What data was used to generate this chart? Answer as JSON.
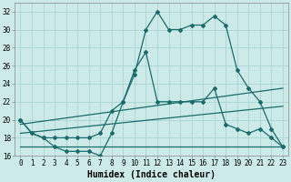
{
  "xlabel": "Humidex (Indice chaleur)",
  "bg_color": "#cceae8",
  "grid_color": "#aad4d2",
  "line_color": "#1a6b6b",
  "series1_x": [
    0,
    1,
    2,
    3,
    4,
    5,
    6,
    7,
    8,
    9,
    10,
    11,
    12,
    13,
    14,
    15,
    16,
    17,
    18,
    19,
    20,
    21,
    22,
    23
  ],
  "series1_y": [
    20,
    18.5,
    18,
    18,
    18,
    18,
    18,
    18.5,
    21,
    22,
    25,
    30,
    32,
    30,
    30,
    30.5,
    30.5,
    31.5,
    30.5,
    25.5,
    23.5,
    22,
    19,
    17
  ],
  "series2_x": [
    0,
    1,
    2,
    3,
    4,
    5,
    6,
    7,
    8,
    9,
    10,
    11,
    12,
    13,
    14,
    15,
    16,
    17,
    18,
    19,
    20,
    21,
    22,
    23
  ],
  "series2_y": [
    20,
    18.5,
    18,
    17,
    16.5,
    16.5,
    16.5,
    16,
    18.5,
    22,
    25.5,
    27.5,
    22,
    22,
    22,
    22,
    22,
    23.5,
    19.5,
    19,
    18.5,
    19,
    18,
    17
  ],
  "series3_x": [
    0,
    23
  ],
  "series3_y": [
    17,
    17
  ],
  "series4_x": [
    0,
    23
  ],
  "series4_y": [
    18.5,
    21.5
  ],
  "series5_x": [
    0,
    23
  ],
  "series5_y": [
    19.5,
    23.5
  ],
  "ylim": [
    16,
    33
  ],
  "xlim": [
    -0.5,
    23.5
  ],
  "yticks": [
    16,
    18,
    20,
    22,
    24,
    26,
    28,
    30,
    32
  ],
  "xticks": [
    0,
    1,
    2,
    3,
    4,
    5,
    6,
    7,
    8,
    9,
    10,
    11,
    12,
    13,
    14,
    15,
    16,
    17,
    18,
    19,
    20,
    21,
    22,
    23
  ],
  "ylabel_fontsize": 6,
  "xlabel_fontsize": 7,
  "tick_fontsize": 5.5
}
